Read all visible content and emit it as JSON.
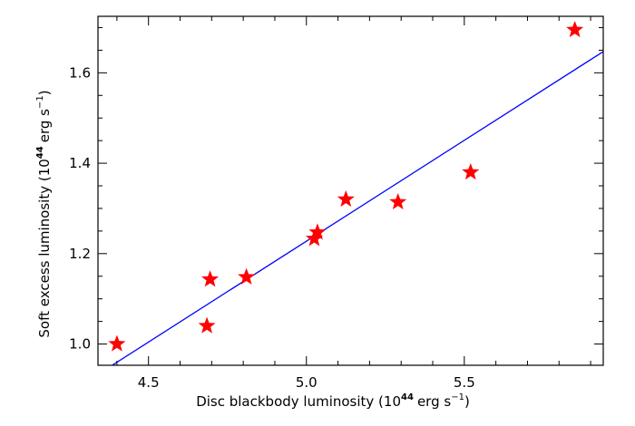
{
  "chart_data": {
    "type": "scatter",
    "xlabel": "Disc blackbody luminosity (10",
    "xlabel_exp": "44",
    "xlabel_unit": "erg s",
    "xlabel_unit_exp": "−1",
    "xlabel_close": ")",
    "ylabel": "Soft excess luminosity (10",
    "ylabel_exp": "44",
    "ylabel_unit": "erg s",
    "ylabel_unit_exp": "−1",
    "ylabel_close": ")",
    "xlim": [
      4.34,
      5.94
    ],
    "ylim": [
      0.953,
      1.725
    ],
    "x_ticks": [
      4.5,
      5.0,
      5.5
    ],
    "x_tick_labels": [
      "4.5",
      "5.0",
      "5.5"
    ],
    "y_ticks": [
      1.0,
      1.2,
      1.4,
      1.6
    ],
    "y_tick_labels": [
      "1.0",
      "1.2",
      "1.4",
      "1.6"
    ],
    "x_minor_step": 0.1,
    "y_minor_step": 0.05,
    "grid": false,
    "colors": {
      "points": "#ff0000",
      "fit_line": "#0000ff",
      "axes": "#000000"
    },
    "points": [
      {
        "x": 4.4,
        "y": 1.0
      },
      {
        "x": 4.685,
        "y": 1.04
      },
      {
        "x": 4.695,
        "y": 1.143
      },
      {
        "x": 4.81,
        "y": 1.148
      },
      {
        "x": 5.025,
        "y": 1.233
      },
      {
        "x": 5.035,
        "y": 1.247
      },
      {
        "x": 5.125,
        "y": 1.32
      },
      {
        "x": 5.29,
        "y": 1.314
      },
      {
        "x": 5.52,
        "y": 1.38
      },
      {
        "x": 5.85,
        "y": 1.695
      }
    ],
    "fit_line": {
      "x": [
        4.385,
        5.94
      ],
      "y": [
        0.953,
        1.647
      ]
    }
  }
}
